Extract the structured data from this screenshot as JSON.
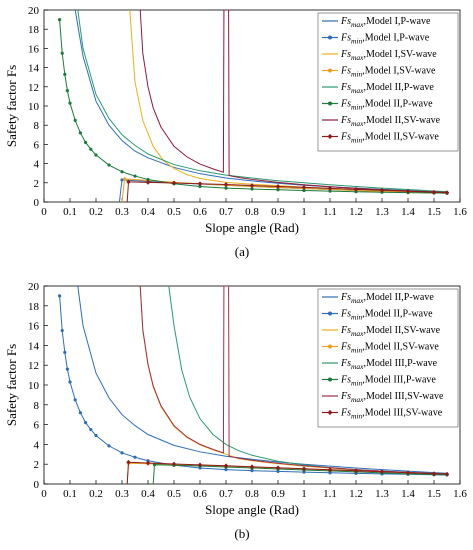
{
  "chart_data": [
    {
      "type": "line",
      "label": "(a)",
      "xlabel": "Slope angle (Rad)",
      "ylabel": "Safety factor Fs",
      "xlim": [
        0,
        1.6
      ],
      "ylim": [
        0,
        20
      ],
      "xticks": [
        "0",
        "0.1",
        "0.2",
        "0.3",
        "0.4",
        "0.5",
        "0.6",
        "0.7",
        "0.8",
        "0.9",
        "1",
        "1.1",
        "1.2",
        "1.3",
        "1.4",
        "1.5",
        "1.6"
      ],
      "yticks": [
        "0",
        "2",
        "4",
        "6",
        "8",
        "10",
        "12",
        "14",
        "16",
        "18",
        "20"
      ],
      "legend_position": "top-right",
      "series": [
        {
          "name": "Fs_max,Model I,P-wave",
          "label": {
            "sym": "Fs",
            "sub": "max",
            "text": ",Model I,P-wave"
          },
          "color": "#2f6db5",
          "marker": "none",
          "x": [
            0.12,
            0.15,
            0.2,
            0.25,
            0.3,
            0.35,
            0.4,
            0.5,
            0.6,
            0.7,
            0.8,
            0.9,
            1.0,
            1.1,
            1.2,
            1.3,
            1.4,
            1.5,
            1.55
          ],
          "y": [
            20,
            15.2,
            10.5,
            8.0,
            6.4,
            5.3,
            4.6,
            3.6,
            2.95,
            2.5,
            2.2,
            1.95,
            1.75,
            1.58,
            1.45,
            1.32,
            1.2,
            1.08,
            1.02
          ]
        },
        {
          "name": "Fs_min,Model I,P-wave",
          "label": {
            "sym": "Fs",
            "sub": "min",
            "text": ",Model I,P-wave"
          },
          "color": "#2f6db5",
          "marker": "circle",
          "x": [
            0.29,
            0.3,
            0.4,
            0.5,
            0.6,
            0.7,
            0.8,
            0.9,
            1.0,
            1.1,
            1.2,
            1.3,
            1.4,
            1.5,
            1.55
          ],
          "y": [
            0,
            2.3,
            2.15,
            2.0,
            1.88,
            1.75,
            1.62,
            1.5,
            1.4,
            1.3,
            1.2,
            1.1,
            1.02,
            0.95,
            0.92
          ]
        },
        {
          "name": "Fs_max,Model I,SV-wave",
          "label": {
            "sym": "Fs",
            "sub": "max",
            "text": ",Model I,SV-wave"
          },
          "color": "#e8b21c",
          "marker": "none",
          "x": [
            0.33,
            0.35,
            0.38,
            0.42,
            0.46,
            0.5,
            0.55,
            0.6,
            0.7,
            0.8,
            0.9,
            1.0,
            1.1,
            1.2,
            1.3,
            1.4,
            1.5,
            1.55
          ],
          "y": [
            20,
            12.5,
            8.5,
            5.8,
            4.3,
            3.5,
            2.85,
            2.45,
            2.05,
            1.85,
            1.7,
            1.55,
            1.42,
            1.3,
            1.2,
            1.1,
            1.0,
            0.95
          ]
        },
        {
          "name": "Fs_min,Model I,SV-wave",
          "label": {
            "sym": "Fs",
            "sub": "min",
            "text": ",Model I,SV-wave"
          },
          "color": "#e8a020",
          "marker": "circle",
          "x": [
            0.3,
            0.31,
            0.4,
            0.5,
            0.6,
            0.7,
            0.8,
            0.9,
            1.0,
            1.1,
            1.2,
            1.3,
            1.4,
            1.5,
            1.55
          ],
          "y": [
            0,
            2.4,
            2.25,
            2.05,
            1.9,
            1.75,
            1.62,
            1.5,
            1.4,
            1.3,
            1.2,
            1.1,
            1.02,
            0.95,
            0.92
          ]
        },
        {
          "name": "Fs_max,Model II,P-wave",
          "label": {
            "sym": "Fs",
            "sub": "max",
            "text": ",Model II,P-wave"
          },
          "color": "#2a9a6f",
          "marker": "none",
          "x": [
            0.13,
            0.15,
            0.2,
            0.25,
            0.3,
            0.35,
            0.4,
            0.5,
            0.6,
            0.7,
            0.8,
            0.9,
            1.0,
            1.1,
            1.2,
            1.3,
            1.4,
            1.5,
            1.55
          ],
          "y": [
            20,
            16.0,
            11.2,
            8.7,
            7.0,
            5.9,
            5.0,
            3.9,
            3.25,
            2.8,
            2.5,
            2.22,
            2.0,
            1.8,
            1.62,
            1.45,
            1.3,
            1.15,
            1.08
          ]
        },
        {
          "name": "Fs_min,Model II,P-wave",
          "label": {
            "sym": "Fs",
            "sub": "min",
            "text": ",Model II,P-wave"
          },
          "color": "#1e7a3c",
          "marker": "circle",
          "x": [
            0.06,
            0.07,
            0.08,
            0.09,
            0.1,
            0.12,
            0.14,
            0.16,
            0.18,
            0.2,
            0.25,
            0.3,
            0.35,
            0.4,
            0.5,
            0.6,
            0.7,
            0.8,
            0.9,
            1.0,
            1.1,
            1.2,
            1.3,
            1.4,
            1.5,
            1.55
          ],
          "y": [
            19.0,
            15.5,
            13.3,
            11.6,
            10.3,
            8.5,
            7.2,
            6.2,
            5.5,
            4.9,
            3.85,
            3.15,
            2.7,
            2.35,
            1.9,
            1.62,
            1.45,
            1.35,
            1.27,
            1.2,
            1.13,
            1.07,
            1.02,
            0.98,
            0.94,
            0.92
          ]
        },
        {
          "name": "Fs_max,Model II,SV-wave",
          "label": {
            "sym": "Fs",
            "sub": "max",
            "text": ",Model II,SV-wave"
          },
          "color": "#8e1b3a",
          "marker": "none",
          "x": [
            0.37,
            0.38,
            0.4,
            0.42,
            0.45,
            0.5,
            0.55,
            0.6,
            0.65,
            0.69,
            0.692,
            0.7,
            0.71,
            0.712,
            0.75,
            0.8,
            0.9,
            1.0,
            1.1,
            1.2,
            1.3,
            1.4,
            1.5,
            1.55
          ],
          "y": [
            20,
            15.5,
            12.0,
            9.8,
            7.8,
            5.8,
            4.7,
            3.95,
            3.45,
            3.1,
            20,
            20,
            20,
            2.75,
            2.55,
            2.35,
            2.05,
            1.8,
            1.6,
            1.42,
            1.28,
            1.15,
            1.05,
            1.0
          ]
        },
        {
          "name": "Fs_min,Model II,SV-wave",
          "label": {
            "sym": "Fs",
            "sub": "min",
            "text": ",Model II,SV-wave"
          },
          "color": "#8e1b1b",
          "marker": "diamond",
          "x": [
            0.32,
            0.325,
            0.4,
            0.5,
            0.6,
            0.7,
            0.8,
            0.9,
            1.0,
            1.1,
            1.2,
            1.3,
            1.4,
            1.5,
            1.55
          ],
          "y": [
            0,
            2.1,
            2.05,
            1.98,
            1.9,
            1.82,
            1.72,
            1.62,
            1.52,
            1.42,
            1.32,
            1.22,
            1.12,
            1.02,
            0.98
          ]
        }
      ]
    },
    {
      "type": "line",
      "label": "(b)",
      "xlabel": "Slope angle (Rad)",
      "ylabel": "Safety factor Fs",
      "xlim": [
        0,
        1.6
      ],
      "ylim": [
        0,
        20
      ],
      "xticks": [
        "0",
        "0.1",
        "0.2",
        "0.3",
        "0.4",
        "0.5",
        "0.6",
        "0.7",
        "0.8",
        "0.9",
        "1",
        "1.1",
        "1.2",
        "1.3",
        "1.4",
        "1.5",
        "1.6"
      ],
      "yticks": [
        "0",
        "2",
        "4",
        "6",
        "8",
        "10",
        "12",
        "14",
        "16",
        "18",
        "20"
      ],
      "legend_position": "top-right",
      "series": [
        {
          "name": "Fs_max,Model II,P-wave",
          "label": {
            "sym": "Fs",
            "sub": "max",
            "text": ",Model II,P-wave"
          },
          "color": "#2f6db5",
          "marker": "none",
          "x": [
            0.13,
            0.15,
            0.2,
            0.25,
            0.3,
            0.35,
            0.4,
            0.5,
            0.6,
            0.7,
            0.8,
            0.9,
            1.0,
            1.1,
            1.2,
            1.3,
            1.4,
            1.5,
            1.55
          ],
          "y": [
            20,
            16.0,
            11.2,
            8.7,
            7.0,
            5.9,
            5.0,
            3.9,
            3.25,
            2.8,
            2.5,
            2.22,
            2.0,
            1.8,
            1.62,
            1.45,
            1.3,
            1.15,
            1.08
          ]
        },
        {
          "name": "Fs_min,Model II,P-wave",
          "label": {
            "sym": "Fs",
            "sub": "min",
            "text": ",Model II,P-wave"
          },
          "color": "#2f6db5",
          "marker": "circle",
          "x": [
            0.06,
            0.07,
            0.08,
            0.09,
            0.1,
            0.12,
            0.14,
            0.16,
            0.18,
            0.2,
            0.25,
            0.3,
            0.35,
            0.4,
            0.5,
            0.6,
            0.7,
            0.8,
            0.9,
            1.0,
            1.1,
            1.2,
            1.3,
            1.4,
            1.5,
            1.55
          ],
          "y": [
            19.0,
            15.5,
            13.3,
            11.6,
            10.3,
            8.5,
            7.2,
            6.2,
            5.5,
            4.9,
            3.85,
            3.15,
            2.7,
            2.35,
            1.9,
            1.62,
            1.45,
            1.35,
            1.27,
            1.2,
            1.13,
            1.07,
            1.02,
            0.98,
            0.94,
            0.92
          ]
        },
        {
          "name": "Fs_max,Model II,SV-wave",
          "label": {
            "sym": "Fs",
            "sub": "max",
            "text": ",Model II,SV-wave"
          },
          "color": "#e8b21c",
          "marker": "none",
          "x": [
            0.37,
            0.38,
            0.4,
            0.42,
            0.45,
            0.5,
            0.55,
            0.6,
            0.65,
            0.69,
            0.7,
            0.75,
            0.8,
            0.9,
            1.0,
            1.1,
            1.2,
            1.3,
            1.4,
            1.5,
            1.55
          ],
          "y": [
            20,
            15.5,
            12.0,
            9.8,
            7.8,
            5.8,
            4.7,
            3.95,
            3.45,
            3.1,
            3.0,
            2.55,
            2.35,
            2.05,
            1.8,
            1.6,
            1.42,
            1.28,
            1.15,
            1.05,
            1.0
          ]
        },
        {
          "name": "Fs_min,Model II,SV-wave",
          "label": {
            "sym": "Fs",
            "sub": "min",
            "text": ",Model II,SV-wave"
          },
          "color": "#e8a020",
          "marker": "circle",
          "x": [
            0.32,
            0.325,
            0.4,
            0.5,
            0.6,
            0.7,
            0.8,
            0.9,
            1.0,
            1.1,
            1.2,
            1.3,
            1.4,
            1.5,
            1.55
          ],
          "y": [
            0,
            2.1,
            2.05,
            1.98,
            1.9,
            1.82,
            1.72,
            1.62,
            1.52,
            1.42,
            1.32,
            1.22,
            1.12,
            1.02,
            0.98
          ]
        },
        {
          "name": "Fs_max,Model III,P-wave",
          "label": {
            "sym": "Fs",
            "sub": "max",
            "text": ",Model III,P-wave"
          },
          "color": "#2a9a6f",
          "marker": "none",
          "x": [
            0.48,
            0.5,
            0.53,
            0.56,
            0.6,
            0.65,
            0.7,
            0.75,
            0.8,
            0.9,
            1.0,
            1.1,
            1.2,
            1.3,
            1.4,
            1.5,
            1.55
          ],
          "y": [
            20,
            16.0,
            11.5,
            8.8,
            6.6,
            5.0,
            4.0,
            3.35,
            2.9,
            2.3,
            1.92,
            1.65,
            1.45,
            1.3,
            1.18,
            1.08,
            1.02
          ]
        },
        {
          "name": "Fs_min,Model III,P-wave",
          "label": {
            "sym": "Fs",
            "sub": "min",
            "text": ",Model III,P-wave"
          },
          "color": "#1e7a3c",
          "marker": "circle",
          "x": [
            0.42,
            0.425,
            0.5,
            0.6,
            0.7,
            0.8,
            0.9,
            1.0,
            1.1,
            1.2,
            1.3,
            1.4,
            1.5,
            1.55
          ],
          "y": [
            0,
            1.95,
            1.9,
            1.82,
            1.72,
            1.62,
            1.52,
            1.42,
            1.32,
            1.22,
            1.12,
            1.02,
            0.95,
            0.92
          ]
        },
        {
          "name": "Fs_max,Model III,SV-wave",
          "label": {
            "sym": "Fs",
            "sub": "max",
            "text": ",Model III,SV-wave"
          },
          "color": "#a0304a",
          "marker": "none",
          "x": [
            0.37,
            0.38,
            0.4,
            0.42,
            0.45,
            0.5,
            0.55,
            0.6,
            0.65,
            0.69,
            0.692,
            0.7,
            0.71,
            0.712,
            0.75,
            0.8,
            0.9,
            1.0,
            1.1,
            1.2,
            1.3,
            1.4,
            1.5,
            1.55
          ],
          "y": [
            20,
            15.6,
            12.1,
            9.9,
            7.9,
            5.9,
            4.75,
            4.0,
            3.5,
            3.15,
            20,
            20,
            20,
            2.8,
            2.6,
            2.4,
            2.1,
            1.85,
            1.65,
            1.45,
            1.3,
            1.17,
            1.07,
            1.02
          ]
        },
        {
          "name": "Fs_min,Model III,SV-wave",
          "label": {
            "sym": "Fs",
            "sub": "min",
            "text": ",Model III,SV-wave"
          },
          "color": "#8e1b1b",
          "marker": "diamond",
          "x": [
            0.32,
            0.325,
            0.4,
            0.5,
            0.6,
            0.7,
            0.8,
            0.9,
            1.0,
            1.1,
            1.2,
            1.3,
            1.4,
            1.5,
            1.55
          ],
          "y": [
            0,
            2.2,
            2.12,
            2.02,
            1.93,
            1.84,
            1.74,
            1.64,
            1.54,
            1.44,
            1.34,
            1.24,
            1.14,
            1.04,
            1.0
          ]
        }
      ]
    }
  ]
}
